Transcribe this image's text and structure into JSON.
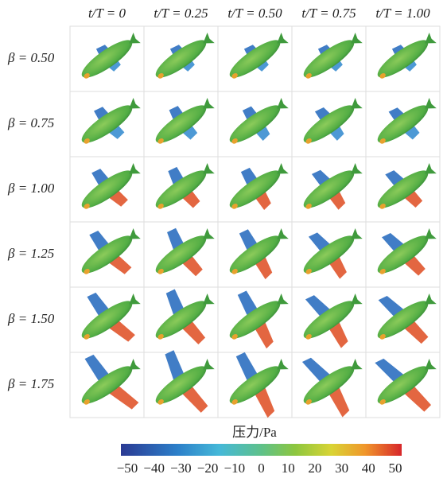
{
  "columns": [
    "t/T = 0",
    "t/T = 0.25",
    "t/T = 0.50",
    "t/T = 0.75",
    "t/T = 1.00"
  ],
  "rows": [
    "β = 0.50",
    "β = 0.75",
    "β = 1.00",
    "β = 1.25",
    "β = 1.50",
    "β = 1.75"
  ],
  "colorbar": {
    "title": "压力/Pa",
    "ticks": [
      "−50",
      "−40",
      "−30",
      "−20",
      "−10",
      "0",
      "10",
      "20",
      "30",
      "40",
      "50"
    ]
  }
}
